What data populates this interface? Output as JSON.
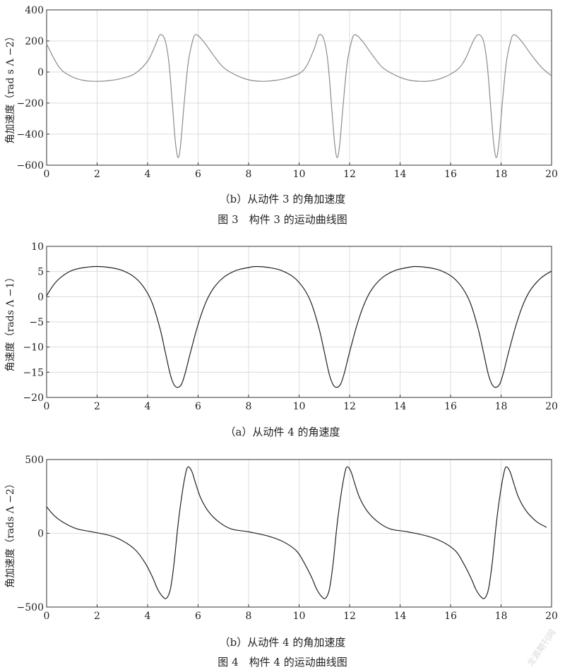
{
  "chart_data": [
    {
      "type": "line",
      "ylabel": "角加速度（rad s Λ −2）",
      "xlim": [
        0,
        20
      ],
      "ylim": [
        -600,
        400
      ],
      "xticks": [
        "0",
        "2",
        "4",
        "6",
        "8",
        "10",
        "12",
        "14",
        "16",
        "18",
        "20"
      ],
      "yticks": [
        "400",
        "200",
        "0",
        "−200",
        "−400",
        "−600"
      ],
      "grid": true,
      "color": "#8c8c8c",
      "series": [
        {
          "x": [
            0,
            0.5,
            1.0,
            1.5,
            2.0,
            2.5,
            3.0,
            3.5,
            4.0,
            4.3,
            4.5,
            4.7,
            4.85,
            5.0,
            5.1,
            5.2,
            5.3,
            5.45,
            5.6,
            5.75,
            5.9,
            6.2,
            6.6,
            7.0,
            7.5,
            8.0,
            8.5,
            9.0,
            9.5,
            10.0,
            10.3,
            10.6,
            10.8,
            11.0,
            11.15,
            11.3,
            11.4,
            11.5,
            11.6,
            11.75,
            11.9,
            12.05,
            12.2,
            12.5,
            12.9,
            13.3,
            13.8,
            14.3,
            14.8,
            15.3,
            15.8,
            16.3,
            16.6,
            16.9,
            17.1,
            17.3,
            17.45,
            17.6,
            17.7,
            17.8,
            17.9,
            18.05,
            18.2,
            18.35,
            18.5,
            18.8,
            19.2,
            19.6,
            20.0
          ],
          "y": [
            180,
            30,
            -30,
            -55,
            -60,
            -55,
            -40,
            -10,
            70,
            170,
            240,
            200,
            50,
            -250,
            -450,
            -550,
            -480,
            -200,
            50,
            180,
            240,
            200,
            110,
            30,
            -20,
            -50,
            -60,
            -55,
            -40,
            -10,
            40,
            150,
            240,
            200,
            50,
            -250,
            -450,
            -550,
            -480,
            -200,
            50,
            180,
            240,
            200,
            110,
            30,
            -20,
            -50,
            -60,
            -55,
            -30,
            20,
            90,
            200,
            240,
            200,
            50,
            -250,
            -450,
            -550,
            -480,
            -200,
            50,
            180,
            240,
            200,
            110,
            30,
            -25
          ]
        }
      ]
    },
    {
      "type": "line",
      "ylabel": "角速度（rads Λ −1）",
      "xlim": [
        0,
        20
      ],
      "ylim": [
        -20,
        10
      ],
      "xticks": [
        "0",
        "2",
        "4",
        "6",
        "8",
        "10",
        "12",
        "14",
        "16",
        "18",
        "20"
      ],
      "yticks": [
        "10",
        "5",
        "0",
        "−5",
        "−10",
        "−15",
        "−20"
      ],
      "grid": true,
      "color": "#222222",
      "series": [
        {
          "x": [
            0,
            0.3,
            0.6,
            1.0,
            1.5,
            2.0,
            2.5,
            3.0,
            3.5,
            3.9,
            4.2,
            4.5,
            4.7,
            4.9,
            5.05,
            5.2,
            5.35,
            5.5,
            5.7,
            6.0,
            6.3,
            6.6,
            7.0,
            7.5,
            8.0,
            8.3,
            8.8,
            9.3,
            9.8,
            10.2,
            10.5,
            10.8,
            11.0,
            11.2,
            11.35,
            11.5,
            11.65,
            11.8,
            12.0,
            12.3,
            12.6,
            12.9,
            13.3,
            13.8,
            14.3,
            14.6,
            15.1,
            15.6,
            16.1,
            16.5,
            16.8,
            17.1,
            17.3,
            17.5,
            17.65,
            17.8,
            17.95,
            18.1,
            18.3,
            18.6,
            18.9,
            19.2,
            19.6,
            20.0
          ],
          "y": [
            0.2,
            2.5,
            4.0,
            5.2,
            5.8,
            6.0,
            5.8,
            5.2,
            3.8,
            1.5,
            -1.5,
            -6.5,
            -11,
            -15.5,
            -17.5,
            -18,
            -17.3,
            -15,
            -11,
            -5.5,
            -1.2,
            1.6,
            3.8,
            5.2,
            5.8,
            6.0,
            5.8,
            5.2,
            3.8,
            1.5,
            -1.5,
            -6.5,
            -11,
            -15.5,
            -17.5,
            -18,
            -17.3,
            -15,
            -11,
            -5.5,
            -1.2,
            1.6,
            3.8,
            5.2,
            5.8,
            6.0,
            5.8,
            5.2,
            3.8,
            1.5,
            -1.5,
            -6.5,
            -11,
            -15.5,
            -17.5,
            -18,
            -17.3,
            -15,
            -11,
            -5.5,
            -1.2,
            1.6,
            3.8,
            5.1
          ]
        }
      ]
    },
    {
      "type": "line",
      "ylabel": "角加速度（rads Λ −2）",
      "xlim": [
        0,
        20
      ],
      "ylim": [
        -500,
        500
      ],
      "xticks": [
        "0",
        "2",
        "4",
        "6",
        "8",
        "10",
        "12",
        "14",
        "16",
        "18",
        "20"
      ],
      "yticks": [
        "500",
        "0",
        "−500"
      ],
      "grid": true,
      "color": "#222222",
      "series": [
        {
          "x": [
            0,
            0.3,
            0.7,
            1.2,
            1.8,
            2.5,
            3.0,
            3.5,
            3.9,
            4.2,
            4.4,
            4.6,
            4.75,
            4.9,
            5.05,
            5.2,
            5.35,
            5.5,
            5.6,
            5.75,
            5.9,
            6.1,
            6.4,
            6.8,
            7.3,
            8.0,
            8.8,
            9.4,
            9.9,
            10.2,
            10.5,
            10.7,
            10.9,
            11.05,
            11.2,
            11.35,
            11.5,
            11.65,
            11.8,
            11.9,
            12.05,
            12.2,
            12.4,
            12.7,
            13.1,
            13.6,
            14.3,
            15.1,
            15.7,
            16.2,
            16.5,
            16.8,
            17.0,
            17.2,
            17.35,
            17.5,
            17.65,
            17.8,
            17.95,
            18.1,
            18.2,
            18.35,
            18.5,
            18.7,
            19.0,
            19.4,
            19.8
          ],
          "y": [
            180,
            120,
            70,
            30,
            10,
            -15,
            -50,
            -110,
            -200,
            -300,
            -380,
            -430,
            -440,
            -380,
            -200,
            50,
            250,
            400,
            450,
            420,
            340,
            240,
            150,
            80,
            30,
            10,
            -20,
            -60,
            -120,
            -200,
            -300,
            -380,
            -430,
            -440,
            -380,
            -200,
            50,
            250,
            400,
            450,
            420,
            340,
            240,
            150,
            80,
            30,
            10,
            -20,
            -60,
            -120,
            -200,
            -300,
            -380,
            -430,
            -440,
            -380,
            -200,
            50,
            250,
            400,
            450,
            420,
            340,
            240,
            150,
            80,
            40
          ]
        }
      ]
    }
  ],
  "captions": {
    "fig3b": "（b）从动件 3 的角加速度",
    "fig3": "图 3　构件 3 的运动曲线图",
    "fig4a": "（a）从动件 4 的角速度",
    "fig4b": "（b）从动件 4 的角加速度",
    "fig4": "图 4　构件 4 的运动曲线图"
  },
  "watermark": "龙源期刊网"
}
